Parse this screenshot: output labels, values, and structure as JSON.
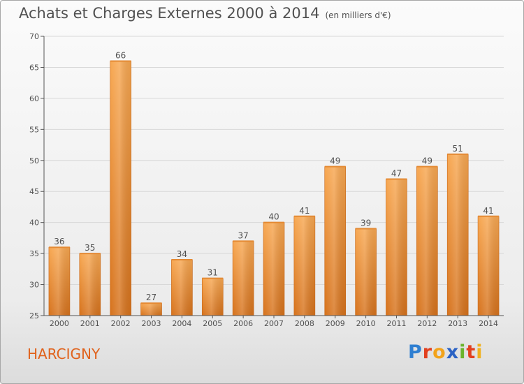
{
  "header": {
    "title": "Achats et Charges Externes 2000 à 2014",
    "subtitle": "(en milliers d'€)"
  },
  "place_name": "HARCIGNY",
  "logo": {
    "text": "Proxiti",
    "letters": [
      {
        "char": "P",
        "color": "#2f7fd1"
      },
      {
        "char": "r",
        "color": "#e2401f"
      },
      {
        "char": "o",
        "color": "#f2a31b"
      },
      {
        "char": "x",
        "color": "#2b62c4"
      },
      {
        "char": "i",
        "color": "#6ab42d"
      },
      {
        "char": "t",
        "color": "#e2401f"
      },
      {
        "char": "i",
        "color": "#f0b11e"
      }
    ]
  },
  "colors": {
    "bar_light": "#f7a751",
    "bar_dark": "#d6721c",
    "axis": "#555555",
    "grid": "#d8d8d8",
    "text": "#505050",
    "place": "#e0621c"
  },
  "chart_data": {
    "type": "bar",
    "title": "Achats et Charges Externes 2000 à 2014",
    "subtitle": "(en milliers d'€)",
    "categories": [
      "2000",
      "2001",
      "2002",
      "2003",
      "2004",
      "2005",
      "2006",
      "2007",
      "2008",
      "2009",
      "2010",
      "2011",
      "2012",
      "2013",
      "2014"
    ],
    "values": [
      36,
      35,
      66,
      27,
      34,
      31,
      37,
      40,
      41,
      49,
      39,
      47,
      49,
      51,
      41
    ],
    "ylim": [
      25,
      70
    ],
    "yticks": [
      25,
      30,
      35,
      40,
      45,
      50,
      55,
      60,
      65,
      70
    ],
    "grid": true,
    "data_labels": true,
    "legend": "none"
  }
}
